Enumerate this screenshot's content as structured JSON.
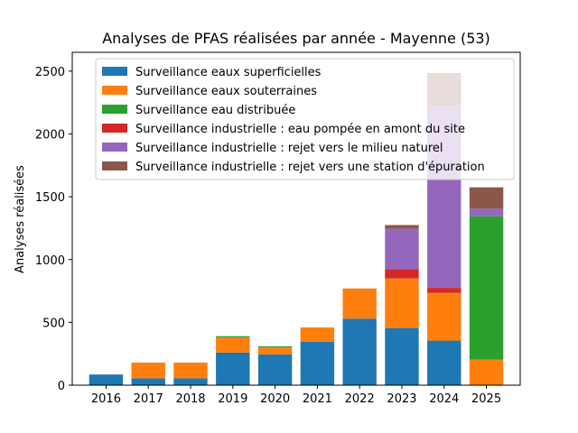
{
  "chart_data": {
    "type": "bar",
    "stacked": true,
    "title": "Analyses de PFAS réalisées par année - Mayenne (53)",
    "xlabel": "",
    "ylabel": "Analyses réalisées",
    "ylim": [
      0,
      2650
    ],
    "yticks": [
      0,
      500,
      1000,
      1500,
      2000,
      2500
    ],
    "grid": false,
    "legend_position": "top-left",
    "categories": [
      "2016",
      "2017",
      "2018",
      "2019",
      "2020",
      "2021",
      "2022",
      "2023",
      "2024",
      "2025"
    ],
    "series": [
      {
        "name": "Surveillance eaux superficielles",
        "color": "#1f77b4",
        "values": [
          85,
          55,
          55,
          260,
          245,
          345,
          530,
          455,
          355,
          0
        ]
      },
      {
        "name": "Surveillance eaux souterraines",
        "color": "#ff7f0e",
        "values": [
          0,
          125,
          125,
          120,
          55,
          115,
          240,
          395,
          380,
          205
        ]
      },
      {
        "name": "Surveillance eau distribuée",
        "color": "#2ca02c",
        "values": [
          0,
          0,
          0,
          10,
          10,
          0,
          0,
          0,
          0,
          1140
        ]
      },
      {
        "name": "Surveillance industrielle : eau pompée en amont du site",
        "color": "#d62728",
        "values": [
          0,
          0,
          0,
          0,
          0,
          0,
          0,
          75,
          40,
          0
        ]
      },
      {
        "name": "Surveillance industrielle : rejet vers le milieu naturel",
        "color": "#9467bd",
        "values": [
          0,
          0,
          0,
          0,
          0,
          0,
          0,
          320,
          1450,
          60
        ]
      },
      {
        "name": "Surveillance industrielle : rejet vers une station d'épuration",
        "color": "#8c564b",
        "values": [
          0,
          0,
          0,
          0,
          0,
          0,
          0,
          30,
          260,
          170
        ]
      }
    ]
  }
}
